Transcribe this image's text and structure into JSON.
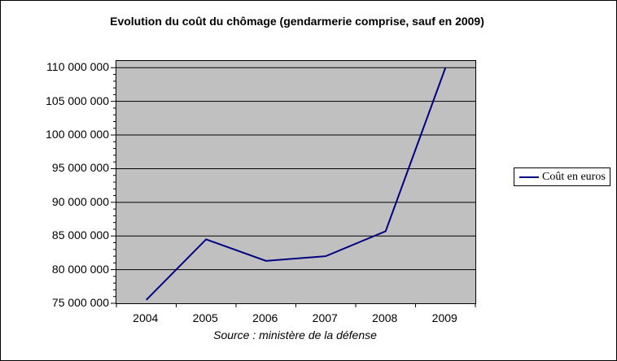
{
  "window": {
    "background": "#FFFFFF",
    "border_color": "#000000"
  },
  "chart_data": {
    "type": "line",
    "title": "Evolution du coût du chômage (gendarmerie comprise, sauf en 2009)",
    "xlabel": "",
    "ylabel": "",
    "categories": [
      "2004",
      "2005",
      "2006",
      "2007",
      "2008",
      "2009"
    ],
    "series": [
      {
        "name": "Coût en euros",
        "color": "#000080",
        "values": [
          75500000,
          84500000,
          81300000,
          82000000,
          85700000,
          110000000
        ]
      }
    ],
    "ylim": [
      75000000,
      111000000
    ],
    "ytick_step": 5000000,
    "ytick_minor_step": 1000000,
    "ytick_labels": [
      "75 000 000",
      "80 000 000",
      "85 000 000",
      "90 000 000",
      "95 000 000",
      "100 000 000",
      "105 000 000",
      "110 000 000"
    ],
    "grid": "horizontal-major",
    "plot_background": "#C0C0C0",
    "gridline_color": "#000000",
    "axis_color": "#000000",
    "legend": {
      "position": "right",
      "entries": [
        {
          "label": "Coût en euros",
          "color": "#000080"
        }
      ]
    },
    "source": "Source : ministère de la défense"
  }
}
